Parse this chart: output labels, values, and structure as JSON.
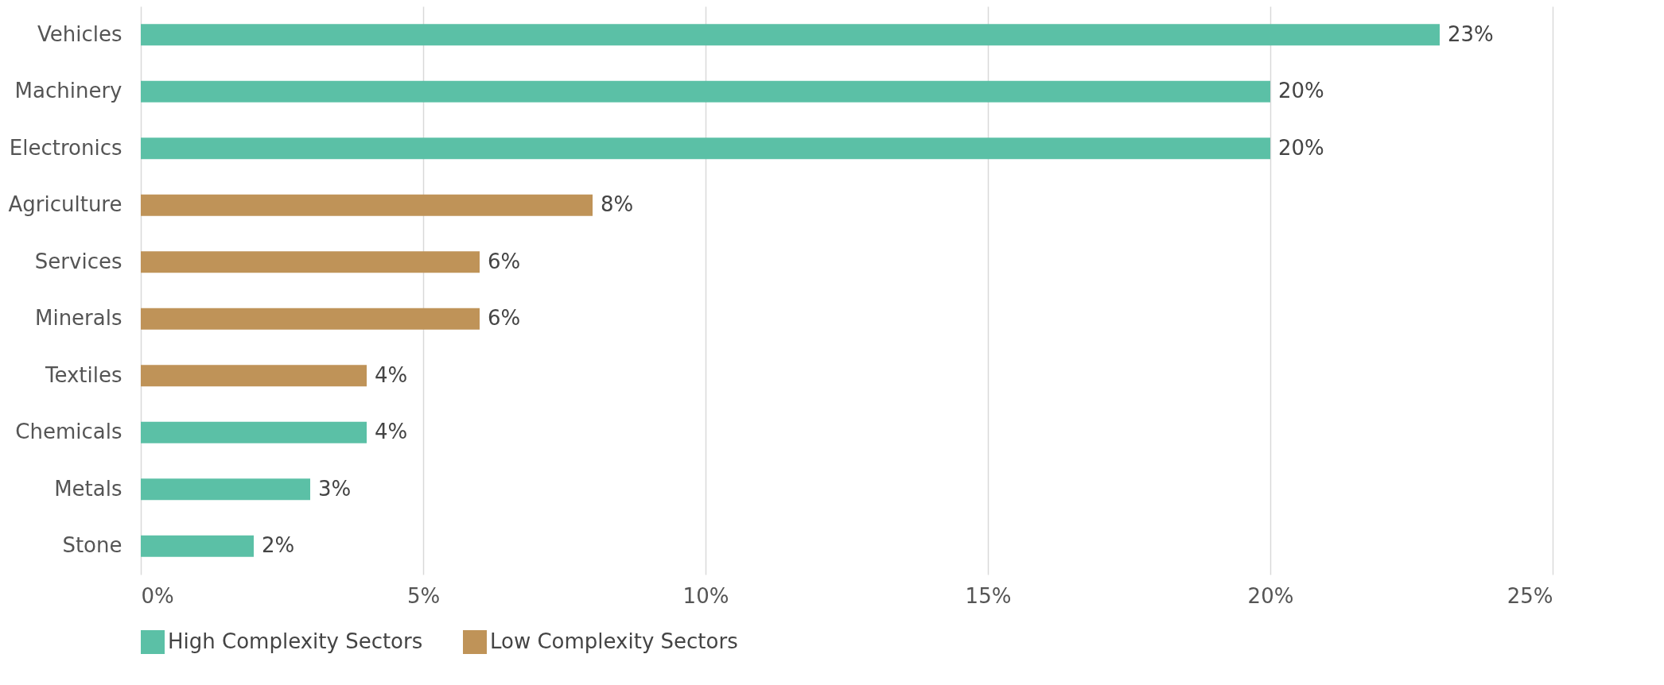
{
  "chart_data": {
    "type": "bar",
    "orientation": "horizontal",
    "categories": [
      "Vehicles",
      "Machinery",
      "Electronics",
      "Agriculture",
      "Services",
      "Minerals",
      "Textiles",
      "Chemicals",
      "Metals",
      "Stone"
    ],
    "series": [
      {
        "name": "High Complexity Sectors",
        "color": "#5bc0a6",
        "values": [
          23,
          20,
          20,
          null,
          null,
          null,
          null,
          4,
          3,
          2
        ],
        "value_labels": [
          "23%",
          "20%",
          "20%",
          null,
          null,
          null,
          null,
          "4%",
          "3%",
          "2%"
        ]
      },
      {
        "name": "Low Complexity Sectors",
        "color": "#bf9358",
        "values": [
          null,
          null,
          null,
          8,
          6,
          6,
          4,
          null,
          null,
          null
        ],
        "value_labels": [
          null,
          null,
          null,
          "8%",
          "6%",
          "6%",
          "4%",
          null,
          null,
          null
        ]
      }
    ],
    "xlim": [
      0,
      25
    ],
    "xticks": [
      {
        "value": 0,
        "label": "0%"
      },
      {
        "value": 5,
        "label": "5%"
      },
      {
        "value": 10,
        "label": "10%"
      },
      {
        "value": 15,
        "label": "15%"
      },
      {
        "value": 20,
        "label": "20%"
      },
      {
        "value": 25,
        "label": "25%"
      }
    ],
    "grid": "x",
    "legend": "bottom"
  }
}
